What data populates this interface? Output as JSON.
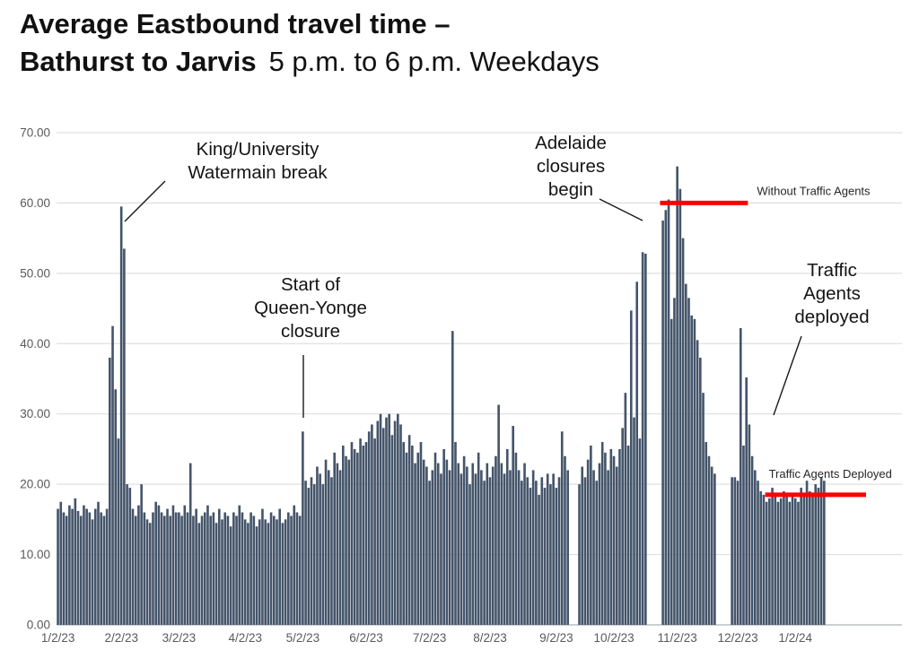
{
  "title": {
    "line1": "Average Eastbound travel time –",
    "line2_bold": "Bathurst to Jarvis",
    "line2_regular": "5 p.m. to 6 p.m. Weekdays"
  },
  "chart_data": {
    "type": "bar",
    "title": "Average Eastbound travel time – Bathurst to Jarvis 5 p.m. to 6 p.m. Weekdays",
    "xlabel": "",
    "ylabel": "",
    "ylim": [
      0,
      70
    ],
    "y_tick_step": 10,
    "y_ticks": [
      "0.00",
      "10.00",
      "20.00",
      "30.00",
      "40.00",
      "50.00",
      "60.00",
      "70.00"
    ],
    "grid": true,
    "legend": "none",
    "bar_color": "#44546A",
    "months": [
      {
        "label": "1/2/23",
        "values": [
          16.5,
          17.5,
          16,
          15.5,
          17,
          16.5,
          18,
          16.2,
          15.5,
          17,
          16.5,
          16,
          15,
          16.5,
          17.5,
          16,
          15.5,
          16.5,
          38,
          42.5,
          33.5,
          26.5
        ]
      },
      {
        "label": "2/2/23",
        "values": [
          59.5,
          53.5,
          20,
          19.5,
          16.5,
          15.5,
          17,
          20,
          16,
          15,
          14.5,
          16,
          17.5,
          17,
          16,
          15.5,
          16.5,
          15.5,
          17,
          16
        ]
      },
      {
        "label": "3/2/23",
        "values": [
          16,
          15.5,
          17,
          16,
          23,
          15.5,
          16.5,
          14.5,
          15.5,
          16,
          17,
          15.5,
          16,
          14.5,
          16.5,
          15,
          16,
          15.5,
          14,
          16,
          15.5,
          17,
          16
        ]
      },
      {
        "label": "4/2/23",
        "values": [
          15,
          14.5,
          16,
          15.5,
          14,
          15,
          16.5,
          15,
          14.5,
          16,
          15.5,
          15,
          16.5,
          14.5,
          15,
          16,
          15.5,
          17,
          16,
          15.5
        ]
      },
      {
        "label": "5/2/23",
        "values": [
          27.5,
          20.5,
          19.5,
          21,
          20,
          22.5,
          21.5,
          20,
          23.5,
          22,
          21,
          24.5,
          23,
          22,
          25.5,
          24,
          23.5,
          26,
          25,
          24.5,
          26.5,
          25.5
        ]
      },
      {
        "label": "6/2/23",
        "values": [
          26,
          27.5,
          28.5,
          26.5,
          29,
          30,
          28,
          29.5,
          30,
          27,
          29,
          30,
          28.5,
          26,
          24.5,
          27,
          25.5,
          23,
          24.5,
          26,
          23.5,
          22.5
        ]
      },
      {
        "label": "7/2/23",
        "values": [
          20.5,
          22,
          24.5,
          23,
          21.5,
          25,
          23.5,
          22,
          41.8,
          26,
          23,
          21.5,
          24,
          22.5,
          20,
          23,
          21.5,
          24.5,
          22,
          20.5,
          23
        ]
      },
      {
        "label": "8/2/23",
        "values": [
          21,
          22.5,
          24,
          31.3,
          23,
          21.5,
          25,
          22,
          28.3,
          24.5,
          22,
          20.5,
          23,
          21,
          19.5,
          22,
          20.5,
          18.5,
          21,
          19.5,
          21.5,
          20,
          21.5
        ]
      },
      {
        "label": "9/2/23",
        "values": [
          19.5,
          21,
          27.5,
          24,
          22,
          null,
          null,
          null,
          20,
          22.5,
          21,
          23.5,
          25.5,
          22,
          20.5,
          23,
          26,
          24.5,
          22,
          25
        ]
      },
      {
        "label": "10/2/23",
        "values": [
          24,
          22.5,
          25,
          28,
          33,
          25.5,
          44.7,
          29.5,
          48.8,
          26.5,
          53,
          52.8,
          null,
          null,
          null,
          null,
          null,
          57.5,
          59,
          60.5,
          43.5,
          46.5
        ]
      },
      {
        "label": "11/2/23",
        "values": [
          65.2,
          62,
          55,
          48.5,
          46.5,
          44,
          43.5,
          40.5,
          38,
          33,
          26,
          24,
          22.5,
          21.5,
          null,
          null,
          null,
          null,
          null,
          21,
          21
        ]
      },
      {
        "label": "12/2/23",
        "values": [
          20.5,
          42.2,
          25.5,
          35.2,
          28.5,
          24,
          22,
          20.5,
          19,
          18.5,
          17.5,
          18,
          19.5,
          18.5,
          17.5,
          18,
          19,
          18.5,
          17.5,
          18.5
        ]
      },
      {
        "label": "1/2/24",
        "values": [
          18,
          17.5,
          19.5,
          18.5,
          20.5,
          19,
          18.5,
          20,
          19.5,
          21,
          20.5
        ]
      }
    ],
    "annotations": [
      {
        "id": "watermain",
        "lines": [
          "King/University",
          "Watermain break"
        ]
      },
      {
        "id": "queen_yonge",
        "lines": [
          "Start of",
          "Queen-Yonge",
          "closure"
        ]
      },
      {
        "id": "adelaide",
        "lines": [
          "Adelaide",
          "closures",
          "begin"
        ]
      },
      {
        "id": "agents_deployed",
        "lines": [
          "Traffic",
          "Agents",
          "deployed"
        ]
      }
    ],
    "reference_lines": [
      {
        "id": "without_agents",
        "label": "Without Traffic Agents",
        "value": 60,
        "color": "#FF0000"
      },
      {
        "id": "with_agents",
        "label": "Traffic Agents Deployed",
        "value": 18.5,
        "color": "#FF0000"
      }
    ]
  }
}
